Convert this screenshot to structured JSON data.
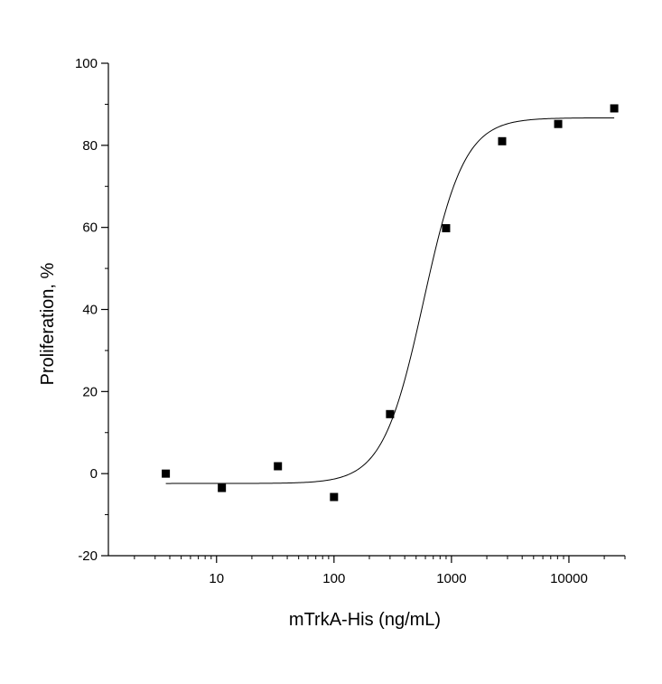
{
  "chart_data": {
    "type": "scatter",
    "title": "",
    "xlabel": "mTrkA-His (ng/mL)",
    "ylabel": "Proliferation, %",
    "x_scale": "log",
    "xlim": [
      1.2,
      30000
    ],
    "ylim": [
      -20,
      100
    ],
    "x_ticks": [
      10,
      100,
      1000,
      10000
    ],
    "x_tick_labels": [
      "10",
      "100",
      "1000",
      "10000"
    ],
    "y_ticks": [
      -20,
      0,
      20,
      40,
      60,
      80,
      100
    ],
    "y_tick_labels": [
      "-20",
      "0",
      "20",
      "40",
      "60",
      "80",
      "100"
    ],
    "grid": false,
    "series": [
      {
        "mode": "markers",
        "marker": "square",
        "color": "#000000",
        "x": [
          3.7,
          11.1,
          33.3,
          100,
          300,
          900,
          2700,
          8100,
          24300
        ],
        "y": [
          0,
          -3.5,
          1.8,
          -5.7,
          14.5,
          59.8,
          81,
          85.2,
          89
        ]
      },
      {
        "mode": "line",
        "fit": "four-parameter logistic",
        "color": "#000000",
        "bottom": -2.4,
        "top": 86.7,
        "ec50": 580,
        "hill": 2.5,
        "x_range": [
          3.7,
          24300
        ]
      }
    ]
  }
}
